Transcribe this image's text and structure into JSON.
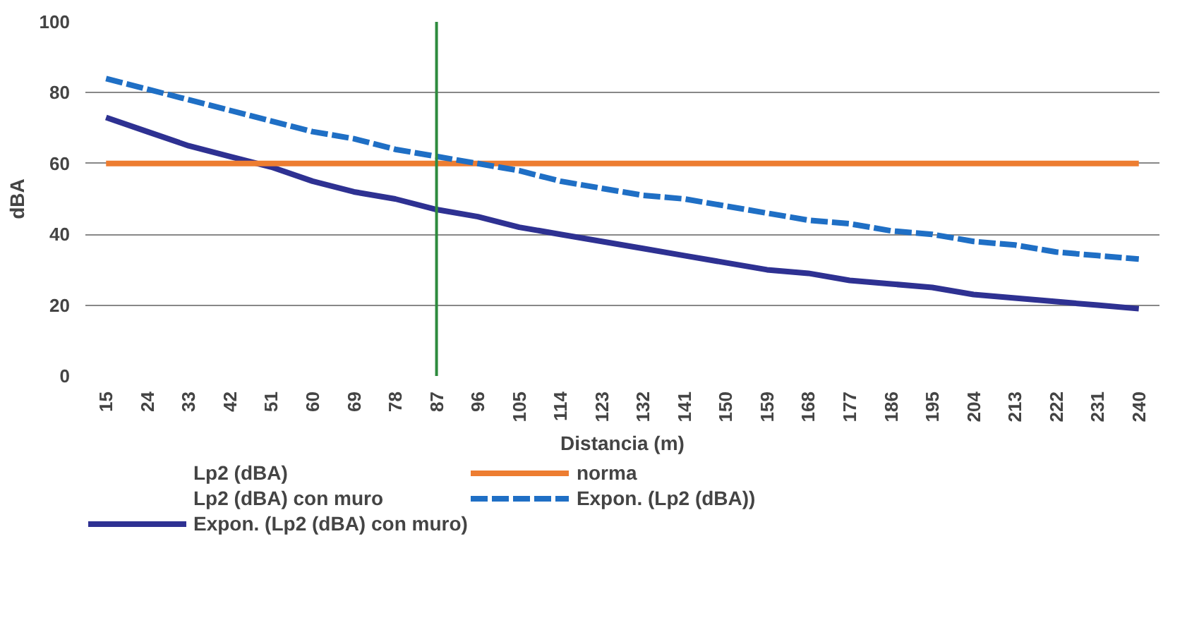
{
  "chart_data": {
    "type": "line",
    "xlabel": "Distancia (m)",
    "ylabel": "dBA",
    "categories": [
      "15",
      "24",
      "33",
      "42",
      "51",
      "60",
      "69",
      "78",
      "87",
      "96",
      "105",
      "114",
      "123",
      "132",
      "141",
      "150",
      "159",
      "168",
      "177",
      "186",
      "195",
      "204",
      "213",
      "222",
      "231",
      "240"
    ],
    "ylim": [
      0,
      100
    ],
    "yticks": [
      0,
      20,
      40,
      60,
      80,
      100
    ],
    "grid": "y",
    "legend": "bottom",
    "ref_lines": [
      {
        "axis": "x",
        "value": "87",
        "color": "#2e8b3e"
      }
    ],
    "series": [
      {
        "name": "Lp2 (dBA)",
        "values": [
          null,
          null,
          null,
          null,
          null,
          null,
          null,
          null,
          null,
          null,
          null,
          null,
          null,
          null,
          null,
          null,
          null,
          null,
          null,
          null,
          null,
          null,
          null,
          null,
          null,
          null
        ]
      },
      {
        "name": "Lp2 (dBA) con muro",
        "values": [
          null,
          null,
          null,
          null,
          null,
          null,
          null,
          null,
          null,
          null,
          null,
          null,
          null,
          null,
          null,
          null,
          null,
          null,
          null,
          null,
          null,
          null,
          null,
          null,
          null,
          null
        ]
      },
      {
        "name": "Expon. (Lp2 (dBA) con muro)",
        "color": "#2e3192",
        "values": [
          73,
          69,
          65,
          62,
          59,
          55,
          52,
          50,
          47,
          45,
          42,
          40,
          38,
          36,
          34,
          32,
          30,
          29,
          27,
          26,
          25,
          23,
          22,
          21,
          20,
          19
        ]
      },
      {
        "name": "norma",
        "color": "#ed7d31",
        "values": [
          60,
          60,
          60,
          60,
          60,
          60,
          60,
          60,
          60,
          60,
          60,
          60,
          60,
          60,
          60,
          60,
          60,
          60,
          60,
          60,
          60,
          60,
          60,
          60,
          60,
          60
        ]
      },
      {
        "name": "Expon. (Lp2 (dBA))",
        "color": "#1f6fc5",
        "line_style": "dashed",
        "values": [
          84,
          81,
          78,
          75,
          72,
          69,
          67,
          64,
          62,
          60,
          58,
          55,
          53,
          51,
          50,
          48,
          46,
          44,
          43,
          41,
          40,
          38,
          37,
          35,
          34,
          33
        ]
      }
    ]
  }
}
